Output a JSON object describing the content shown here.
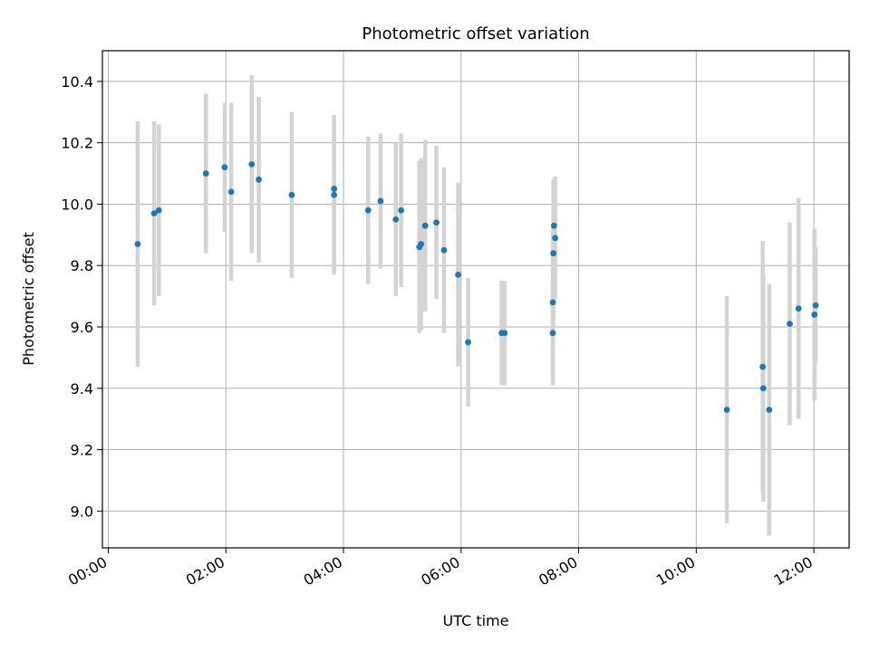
{
  "chart_data": {
    "type": "scatter",
    "title": "Photometric offset variation",
    "xlabel": "UTC time",
    "ylabel": "Photometric offset",
    "x_unit": "hours",
    "xlim": [
      -0.1,
      12.6
    ],
    "ylim": [
      8.88,
      10.5
    ],
    "x_ticks": [
      0,
      2,
      4,
      6,
      8,
      10,
      12
    ],
    "x_tick_labels": [
      "00:00",
      "02:00",
      "04:00",
      "06:00",
      "08:00",
      "10:00",
      "12:00"
    ],
    "y_ticks": [
      9.0,
      9.2,
      9.4,
      9.6,
      9.8,
      10.0,
      10.2,
      10.4
    ],
    "y_tick_labels": [
      "9.0",
      "9.2",
      "9.4",
      "9.6",
      "9.8",
      "10.0",
      "10.2",
      "10.4"
    ],
    "grid": true,
    "colors": {
      "point": "#1f77b4",
      "errorbar": "#d3d3d3",
      "grid": "#b0b0b0"
    },
    "points": [
      {
        "x": 0.5,
        "y": 9.87,
        "err": 0.4
      },
      {
        "x": 0.78,
        "y": 9.97,
        "err": 0.3
      },
      {
        "x": 0.86,
        "y": 9.98,
        "err": 0.28
      },
      {
        "x": 1.66,
        "y": 10.1,
        "err": 0.26
      },
      {
        "x": 1.98,
        "y": 10.12,
        "err": 0.21
      },
      {
        "x": 2.09,
        "y": 10.04,
        "err": 0.29
      },
      {
        "x": 2.44,
        "y": 10.13,
        "err": 0.29
      },
      {
        "x": 2.56,
        "y": 10.08,
        "err": 0.27
      },
      {
        "x": 3.12,
        "y": 10.03,
        "err": 0.27
      },
      {
        "x": 3.84,
        "y": 10.05,
        "err": 0.24
      },
      {
        "x": 3.84,
        "y": 10.03,
        "err": 0.26
      },
      {
        "x": 4.42,
        "y": 9.98,
        "err": 0.24
      },
      {
        "x": 4.63,
        "y": 10.01,
        "err": 0.22
      },
      {
        "x": 4.89,
        "y": 9.95,
        "err": 0.25
      },
      {
        "x": 4.98,
        "y": 9.98,
        "err": 0.25
      },
      {
        "x": 5.29,
        "y": 9.86,
        "err": 0.28
      },
      {
        "x": 5.32,
        "y": 9.87,
        "err": 0.28
      },
      {
        "x": 5.39,
        "y": 9.93,
        "err": 0.28
      },
      {
        "x": 5.58,
        "y": 9.94,
        "err": 0.25
      },
      {
        "x": 5.71,
        "y": 9.85,
        "err": 0.27
      },
      {
        "x": 5.95,
        "y": 9.77,
        "err": 0.3
      },
      {
        "x": 6.12,
        "y": 9.55,
        "err": 0.21
      },
      {
        "x": 6.69,
        "y": 9.58,
        "err": 0.17
      },
      {
        "x": 6.74,
        "y": 9.58,
        "err": 0.17
      },
      {
        "x": 7.56,
        "y": 9.58,
        "err": 0.17
      },
      {
        "x": 7.56,
        "y": 9.68,
        "err": 0.24
      },
      {
        "x": 7.57,
        "y": 9.84,
        "err": 0.24
      },
      {
        "x": 7.58,
        "y": 9.93,
        "err": 0.14
      },
      {
        "x": 7.6,
        "y": 9.89,
        "err": 0.2
      },
      {
        "x": 10.52,
        "y": 9.33,
        "err": 0.37
      },
      {
        "x": 11.13,
        "y": 9.47,
        "err": 0.41
      },
      {
        "x": 11.14,
        "y": 9.4,
        "err": 0.37
      },
      {
        "x": 11.24,
        "y": 9.33,
        "err": 0.41
      },
      {
        "x": 11.59,
        "y": 9.61,
        "err": 0.33
      },
      {
        "x": 11.74,
        "y": 9.66,
        "err": 0.36
      },
      {
        "x": 12.01,
        "y": 9.64,
        "err": 0.28
      },
      {
        "x": 12.03,
        "y": 9.67,
        "err": 0.19
      }
    ]
  }
}
